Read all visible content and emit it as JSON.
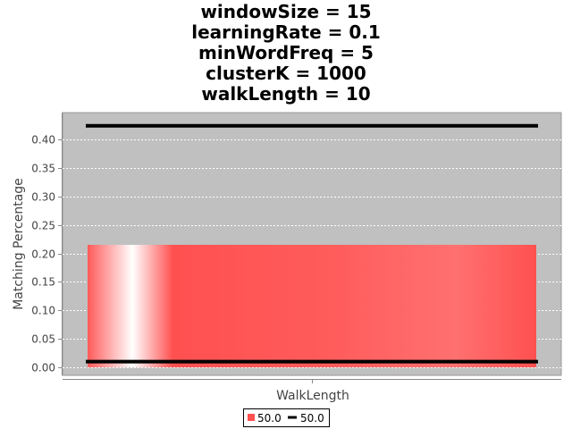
{
  "chart_data": {
    "type": "bar",
    "title_lines": [
      "windowSize = 15",
      "learningRate = 0.1",
      "minWordFreq = 5",
      "clusterK = 1000",
      "walkLength = 10"
    ],
    "xlabel": "WalkLength",
    "ylabel": "Matching Percentage",
    "ylim": [
      0,
      0.44
    ],
    "yticks": [
      "0.00",
      "0.05",
      "0.10",
      "0.15",
      "0.20",
      "0.25",
      "0.30",
      "0.35",
      "0.40"
    ],
    "categories": [
      ""
    ],
    "grid": true,
    "legend_position": "bottom",
    "bar": {
      "name": "50.0",
      "value": 0.215,
      "color": "#ff5050"
    },
    "interval": {
      "name": "50.0",
      "low": 0.01,
      "high": 0.424,
      "color": "#000000"
    },
    "plot_background": "#c0c0c0"
  }
}
